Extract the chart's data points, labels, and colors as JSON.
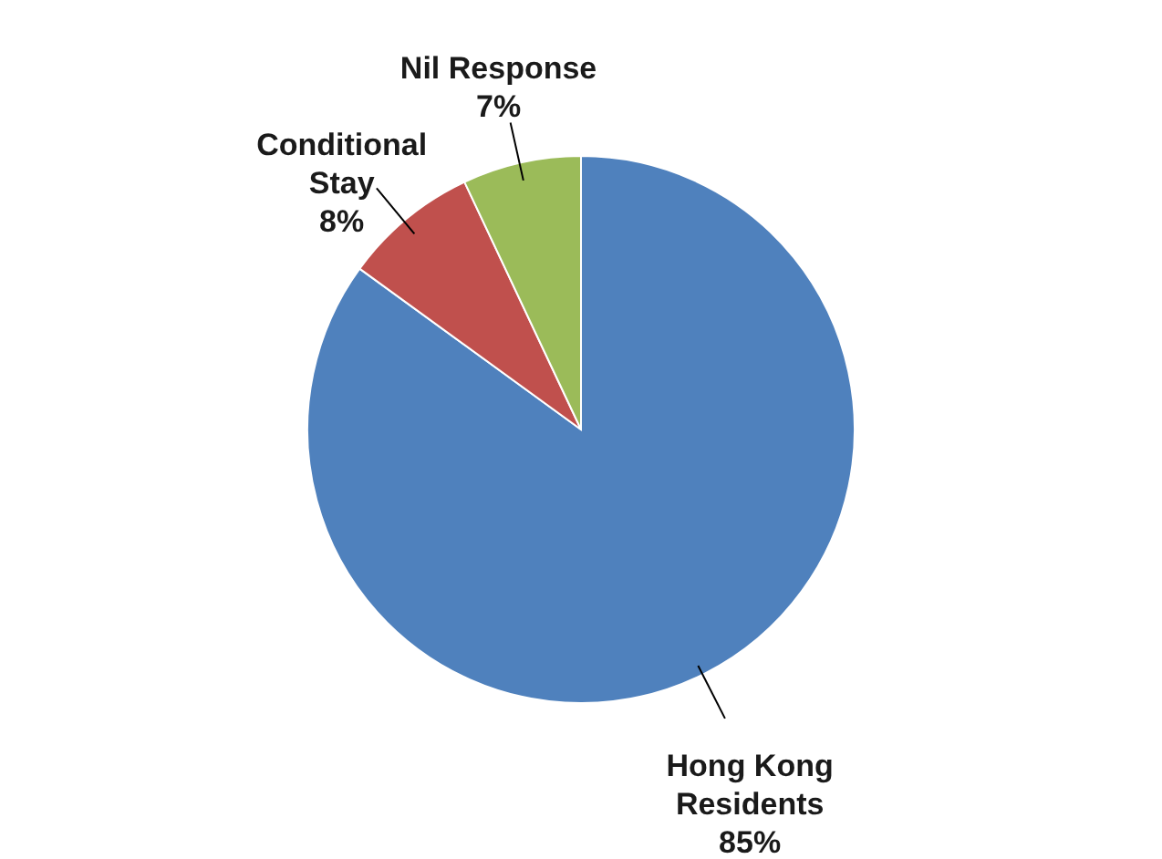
{
  "chart_data": {
    "type": "pie",
    "categories": [
      "Hong Kong\nResidents",
      "Conditional\nStay",
      "Nil Response"
    ],
    "values": [
      85,
      8,
      7
    ],
    "colors": [
      "#4f81bd",
      "#c0504d",
      "#9bbb59"
    ],
    "value_labels": [
      "85%",
      "8%",
      "7%"
    ]
  }
}
